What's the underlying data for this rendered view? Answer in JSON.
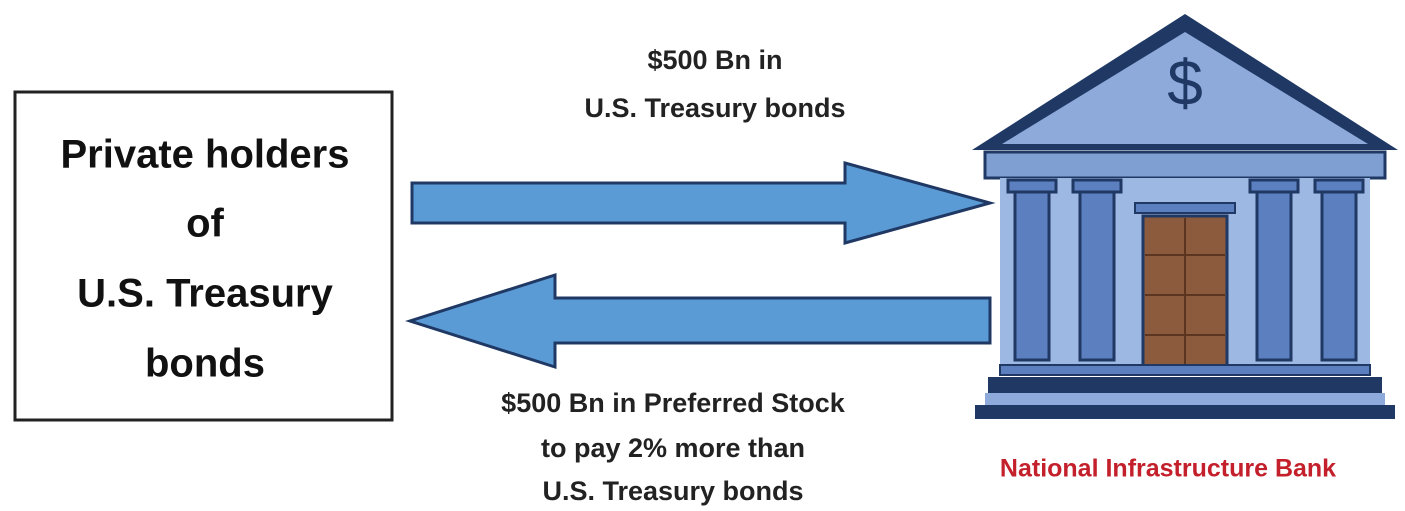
{
  "box": {
    "lines": [
      "Private holders",
      "of",
      "U.S. Treasury",
      "bonds"
    ]
  },
  "top_arrow": {
    "lines": [
      "$500 Bn  in",
      "U.S. Treasury bonds"
    ]
  },
  "bottom_arrow": {
    "lines": [
      "$500 Bn  in  Preferred Stock",
      "to pay 2% more than",
      "U.S. Treasury bonds"
    ]
  },
  "bank": {
    "symbol": "$",
    "label": "National Infrastructure Bank"
  }
}
